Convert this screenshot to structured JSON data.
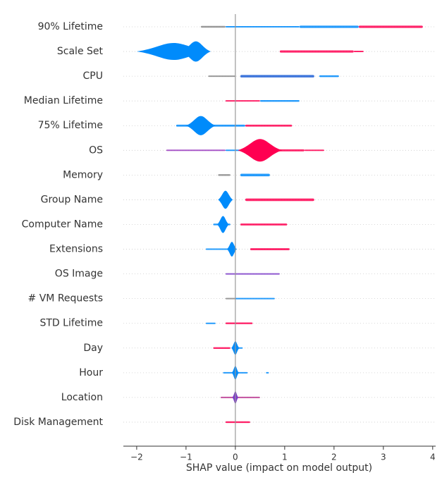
{
  "chart_data": {
    "type": "violin",
    "xlabel": "SHAP value (impact on model output)",
    "xlim": [
      -2.27,
      4.06
    ],
    "xticks": [
      {
        "value": -2,
        "label": "−2"
      },
      {
        "value": -1,
        "label": "−1"
      },
      0,
      1,
      2,
      3,
      4
    ],
    "zero_line": 0,
    "grid": true,
    "categories": [
      "90% Lifetime",
      "Scale Set",
      "CPU",
      "Median Lifetime",
      "75% Lifetime",
      "OS",
      "Memory",
      "Group Name",
      "Computer Name",
      "Extensions",
      "OS Image",
      "# VM Requests",
      "STD Lifetime",
      "Day",
      "Hour",
      "Location",
      "Disk Management"
    ],
    "rows": [
      {
        "segments": [
          {
            "x0": -0.7,
            "x1": -0.2,
            "color": "#888888",
            "density": 0.3
          },
          {
            "x0": -0.2,
            "x1": 1.3,
            "color": "#008bfb",
            "density": 0.2
          },
          {
            "x0": 1.3,
            "x1": 2.5,
            "color": "#008bfb",
            "density": 0.4
          },
          {
            "x0": 2.5,
            "x1": 3.8,
            "color": "#ff0051",
            "density": 0.4
          }
        ],
        "violins": []
      },
      {
        "segments": [
          {
            "x0": 0.9,
            "x1": 2.4,
            "color": "#ff0051",
            "density": 0.4
          },
          {
            "x0": 2.4,
            "x1": 2.6,
            "color": "#ff0051",
            "density": 0.15
          }
        ],
        "violins": [
          {
            "x": -1.25,
            "spread": 0.75,
            "density": 0.75,
            "color": "#008bfb"
          },
          {
            "x": -0.8,
            "spread": 0.3,
            "density": 0.9,
            "color": "#008bfb"
          }
        ]
      },
      {
        "segments": [
          {
            "x0": -0.55,
            "x1": 0,
            "color": "#888888",
            "density": 0.25
          },
          {
            "x0": 0.1,
            "x1": 1.6,
            "color": "#1f5fd6",
            "density": 0.45
          },
          {
            "x0": 1.7,
            "x1": 2.1,
            "color": "#008bfb",
            "density": 0.3
          }
        ],
        "violins": []
      },
      {
        "segments": [
          {
            "x0": -0.2,
            "x1": 0.5,
            "color": "#ff0051",
            "density": 0.25
          },
          {
            "x0": 0.5,
            "x1": 1.3,
            "color": "#008bfb",
            "density": 0.3
          }
        ],
        "violins": []
      },
      {
        "segments": [
          {
            "x0": -1.2,
            "x1": 0.2,
            "color": "#008bfb",
            "density": 0.35
          },
          {
            "x0": 0.2,
            "x1": 1.15,
            "color": "#ff0051",
            "density": 0.35
          }
        ],
        "violins": [
          {
            "x": -0.7,
            "spread": 0.3,
            "density": 0.85,
            "color": "#008bfb"
          }
        ]
      },
      {
        "segments": [
          {
            "x0": -1.4,
            "x1": -0.2,
            "color": "#9b3dbf",
            "density": 0.2
          },
          {
            "x0": -0.2,
            "x1": 0.2,
            "color": "#008bfb",
            "density": 0.25
          },
          {
            "x0": 0.8,
            "x1": 1.4,
            "color": "#ff0051",
            "density": 0.35
          },
          {
            "x0": 1.4,
            "x1": 1.8,
            "color": "#ff0051",
            "density": 0.15
          }
        ],
        "violins": [
          {
            "x": 0.5,
            "spread": 0.45,
            "density": 1.0,
            "color": "#ff0051"
          }
        ]
      },
      {
        "segments": [
          {
            "x0": -0.35,
            "x1": -0.1,
            "color": "#888888",
            "density": 0.3
          },
          {
            "x0": 0.1,
            "x1": 0.7,
            "color": "#008bfb",
            "density": 0.45
          }
        ],
        "violins": []
      },
      {
        "segments": [
          {
            "x0": 0.2,
            "x1": 1.6,
            "color": "#ff0051",
            "density": 0.45
          }
        ],
        "violins": [
          {
            "x": -0.2,
            "spread": 0.15,
            "density": 0.8,
            "color": "#008bfb"
          }
        ]
      },
      {
        "segments": [
          {
            "x0": -0.45,
            "x1": -0.1,
            "color": "#008bfb",
            "density": 0.3
          },
          {
            "x0": 0.1,
            "x1": 1.05,
            "color": "#ff0051",
            "density": 0.35
          }
        ],
        "violins": [
          {
            "x": -0.25,
            "spread": 0.12,
            "density": 0.75,
            "color": "#008bfb"
          }
        ]
      },
      {
        "segments": [
          {
            "x0": -0.6,
            "x1": -0.05,
            "color": "#008bfb",
            "density": 0.25
          },
          {
            "x0": 0.3,
            "x1": 1.1,
            "color": "#ff0051",
            "density": 0.35
          }
        ],
        "violins": [
          {
            "x": -0.07,
            "spread": 0.1,
            "density": 0.65,
            "color": "#008bfb"
          }
        ]
      },
      {
        "segments": [
          {
            "x0": -0.2,
            "x1": 0.9,
            "color": "#7d3cc8",
            "density": 0.25
          }
        ],
        "violins": []
      },
      {
        "segments": [
          {
            "x0": -0.2,
            "x1": 0,
            "color": "#888888",
            "density": 0.25
          },
          {
            "x0": 0,
            "x1": 0.8,
            "color": "#008bfb",
            "density": 0.25
          }
        ],
        "violins": []
      },
      {
        "segments": [
          {
            "x0": -0.6,
            "x1": -0.4,
            "color": "#008bfb",
            "density": 0.25
          },
          {
            "x0": -0.2,
            "x1": 0.35,
            "color": "#ff0051",
            "density": 0.3
          }
        ],
        "violins": []
      },
      {
        "segments": [
          {
            "x0": -0.45,
            "x1": -0.1,
            "color": "#ff0051",
            "density": 0.3
          },
          {
            "x0": 0,
            "x1": 0.15,
            "color": "#008bfb",
            "density": 0.25
          }
        ],
        "violins": [
          {
            "x": 0,
            "spread": 0.08,
            "density": 0.6,
            "color": "#008bfb"
          }
        ]
      },
      {
        "segments": [
          {
            "x0": -0.25,
            "x1": 0.25,
            "color": "#008bfb",
            "density": 0.25
          },
          {
            "x0": 0.62,
            "x1": 0.68,
            "color": "#008bfb",
            "density": 0.2
          }
        ],
        "violins": [
          {
            "x": 0,
            "spread": 0.07,
            "density": 0.6,
            "color": "#008bfb"
          }
        ]
      },
      {
        "segments": [
          {
            "x0": -0.3,
            "x1": 0.5,
            "color": "#b9348f",
            "density": 0.2
          }
        ],
        "violins": [
          {
            "x": 0,
            "spread": 0.06,
            "density": 0.55,
            "color": "#7d3cc8"
          }
        ]
      },
      {
        "segments": [
          {
            "x0": -0.2,
            "x1": 0.3,
            "color": "#ff0051",
            "density": 0.3
          }
        ],
        "violins": []
      }
    ]
  }
}
